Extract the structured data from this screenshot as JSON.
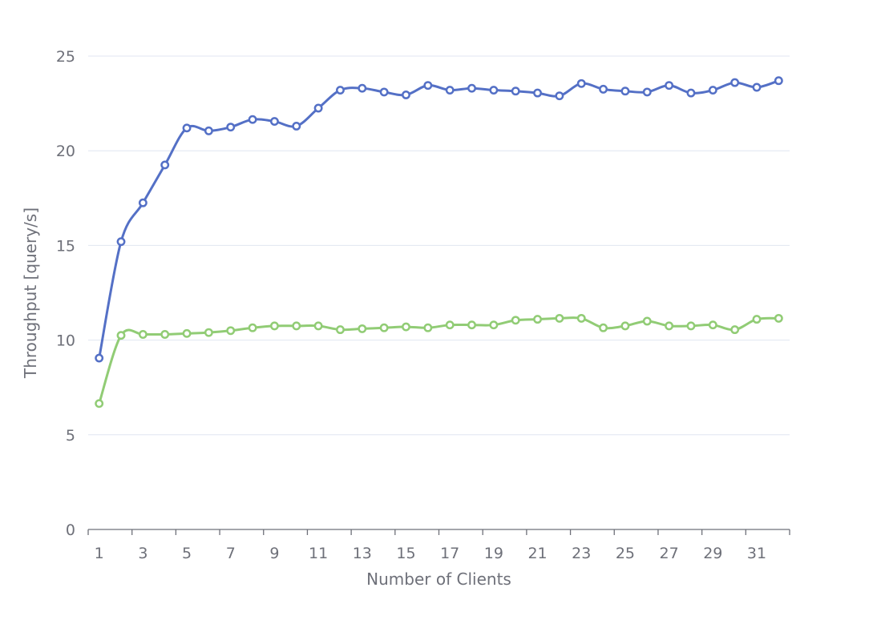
{
  "chart_data": {
    "type": "line",
    "title": "",
    "xlabel": "Number of Clients",
    "ylabel": "Throughput [query/s]",
    "x": [
      1,
      2,
      3,
      4,
      5,
      6,
      7,
      8,
      9,
      10,
      11,
      12,
      13,
      14,
      15,
      16,
      17,
      18,
      19,
      20,
      21,
      22,
      23,
      24,
      25,
      26,
      27,
      28,
      29,
      30,
      31,
      32
    ],
    "x_tick_labels": [
      "1",
      "3",
      "5",
      "7",
      "9",
      "11",
      "13",
      "15",
      "17",
      "19",
      "21",
      "23",
      "25",
      "27",
      "29",
      "31"
    ],
    "x_tick_values": [
      1,
      3,
      5,
      7,
      9,
      11,
      13,
      15,
      17,
      19,
      21,
      23,
      25,
      27,
      29,
      31
    ],
    "y_tick_labels": [
      "0",
      "5",
      "10",
      "15",
      "20",
      "25"
    ],
    "y_tick_values": [
      0,
      5,
      10,
      15,
      20,
      25
    ],
    "ylim": [
      0,
      25
    ],
    "xlim": [
      0.5,
      32.5
    ],
    "grid": true,
    "smooth": true,
    "legend": "none",
    "series": [
      {
        "color": "#5470c6",
        "values": [
          9.05,
          15.2,
          17.25,
          19.25,
          21.2,
          21.05,
          21.25,
          21.65,
          21.55,
          21.3,
          22.25,
          23.2,
          23.3,
          23.1,
          22.95,
          23.45,
          23.2,
          23.3,
          23.2,
          23.15,
          23.05,
          22.9,
          23.55,
          23.25,
          23.15,
          23.1,
          23.45,
          23.05,
          23.2,
          23.6,
          23.35,
          23.7
        ]
      },
      {
        "color": "#91cc75",
        "values": [
          6.65,
          10.25,
          10.3,
          10.3,
          10.35,
          10.4,
          10.5,
          10.65,
          10.75,
          10.75,
          10.75,
          10.55,
          10.6,
          10.65,
          10.7,
          10.65,
          10.8,
          10.8,
          10.8,
          11.05,
          11.1,
          11.15,
          11.15,
          10.65,
          10.75,
          11.0,
          10.75,
          10.75,
          10.8,
          10.55,
          11.1,
          11.15
        ]
      }
    ]
  }
}
